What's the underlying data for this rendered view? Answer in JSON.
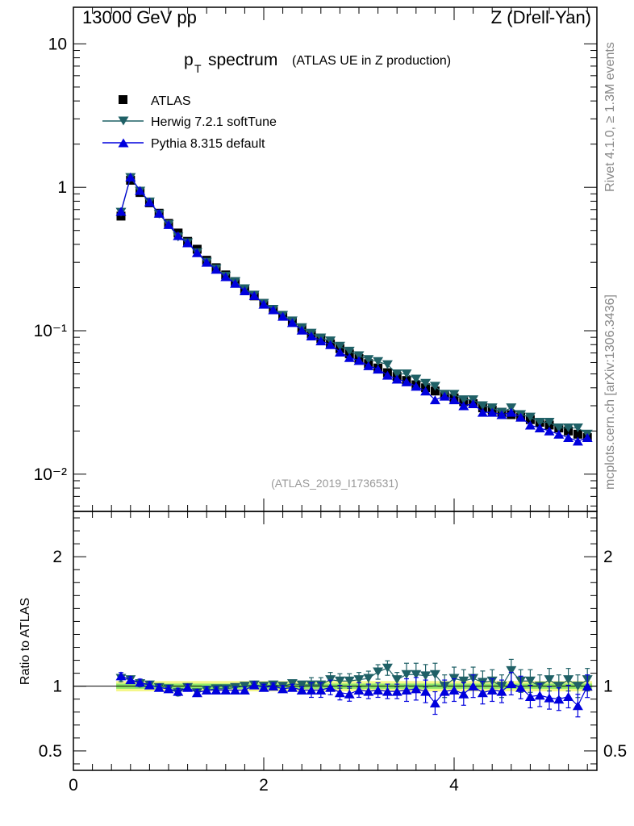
{
  "header": {
    "energy": "13000 GeV pp",
    "process": "Z (Drell-Yan)"
  },
  "side": {
    "rivet": "Rivet 4.1.0, ≥ 1.3M events",
    "mcplots": "mcplots.cern.ch [arXiv:1306.3436]"
  },
  "colors": {
    "atlas": "#000000",
    "herwig": "#1f6066",
    "pythia": "#0000dd",
    "band_outer": "#f4f78a",
    "band_inner": "#8fe86a"
  },
  "chart_data": [
    {
      "type": "scatter",
      "title": "p_T spectrum",
      "title_main": "p",
      "title_sub": "T",
      "title_word": "spectrum",
      "title_note": "(ATLAS UE in Z production)",
      "analysis_label": "(ATLAS_2019_I1736531)",
      "xlabel": "",
      "ylabel": "",
      "yscale": "log",
      "xlim": [
        0,
        5.5
      ],
      "ylim": [
        0.0055,
        18
      ],
      "ytick_labels": [
        "10",
        "1",
        "10⁻¹",
        "10⁻²"
      ],
      "ytick_values": [
        10,
        1,
        0.1,
        0.01
      ],
      "legend": [
        "ATLAS",
        "Herwig 7.2.1 softTune",
        "Pythia 8.315 default"
      ],
      "x": [
        0.5,
        0.6,
        0.7,
        0.8,
        0.9,
        1.0,
        1.1,
        1.2,
        1.3,
        1.4,
        1.5,
        1.6,
        1.7,
        1.8,
        1.9,
        2.0,
        2.1,
        2.2,
        2.3,
        2.4,
        2.5,
        2.6,
        2.7,
        2.8,
        2.9,
        3.0,
        3.1,
        3.2,
        3.3,
        3.4,
        3.5,
        3.6,
        3.7,
        3.8,
        3.9,
        4.0,
        4.1,
        4.2,
        4.3,
        4.4,
        4.5,
        4.6,
        4.7,
        4.8,
        4.9,
        5.0,
        5.1,
        5.2,
        5.3,
        5.4
      ],
      "series": [
        {
          "name": "ATLAS",
          "marker": "square",
          "values": [
            0.63,
            1.12,
            0.92,
            0.78,
            0.66,
            0.56,
            0.48,
            0.42,
            0.37,
            0.31,
            0.275,
            0.245,
            0.22,
            0.195,
            0.175,
            0.155,
            0.14,
            0.128,
            0.115,
            0.104,
            0.095,
            0.088,
            0.081,
            0.075,
            0.069,
            0.064,
            0.059,
            0.055,
            0.051,
            0.048,
            0.045,
            0.042,
            0.04,
            0.038,
            0.036,
            0.034,
            0.032,
            0.031,
            0.029,
            0.028,
            0.027,
            0.026,
            0.025,
            0.024,
            0.023,
            0.022,
            0.021,
            0.02,
            0.019,
            0.018
          ]
        },
        {
          "name": "Herwig 7.2.1 softTune",
          "marker": "triangle-down",
          "values": [
            0.67,
            1.17,
            0.94,
            0.79,
            0.65,
            0.55,
            0.45,
            0.41,
            0.35,
            0.3,
            0.27,
            0.24,
            0.22,
            0.196,
            0.177,
            0.155,
            0.141,
            0.128,
            0.117,
            0.105,
            0.096,
            0.089,
            0.085,
            0.078,
            0.072,
            0.067,
            0.063,
            0.061,
            0.058,
            0.05,
            0.05,
            0.046,
            0.043,
            0.041,
            0.036,
            0.036,
            0.033,
            0.033,
            0.03,
            0.029,
            0.027,
            0.029,
            0.026,
            0.025,
            0.023,
            0.023,
            0.021,
            0.021,
            0.021,
            0.019
          ]
        },
        {
          "name": "Pythia 8.315 default",
          "marker": "triangle-up",
          "values": [
            0.68,
            1.18,
            0.95,
            0.79,
            0.66,
            0.55,
            0.46,
            0.41,
            0.35,
            0.3,
            0.268,
            0.238,
            0.214,
            0.19,
            0.176,
            0.153,
            0.14,
            0.126,
            0.114,
            0.101,
            0.092,
            0.085,
            0.08,
            0.071,
            0.065,
            0.062,
            0.057,
            0.054,
            0.049,
            0.046,
            0.044,
            0.041,
            0.038,
            0.033,
            0.035,
            0.033,
            0.03,
            0.031,
            0.027,
            0.027,
            0.026,
            0.027,
            0.025,
            0.022,
            0.021,
            0.02,
            0.019,
            0.018,
            0.017,
            0.018
          ]
        }
      ]
    },
    {
      "type": "scatter",
      "title": "",
      "xlabel": "",
      "ylabel": "Ratio to ATLAS",
      "xlim": [
        0,
        5.5
      ],
      "ylim": [
        0.35,
        2.35
      ],
      "xtick_values": [
        0,
        2,
        4
      ],
      "xtick_labels": [
        "0",
        "2",
        "4"
      ],
      "ytick_values": [
        0.5,
        1,
        2
      ],
      "ytick_labels": [
        "0.5",
        "1",
        "2"
      ],
      "x": [
        0.5,
        0.6,
        0.7,
        0.8,
        0.9,
        1.0,
        1.1,
        1.2,
        1.3,
        1.4,
        1.5,
        1.6,
        1.7,
        1.8,
        1.9,
        2.0,
        2.1,
        2.2,
        2.3,
        2.4,
        2.5,
        2.6,
        2.7,
        2.8,
        2.9,
        3.0,
        3.1,
        3.2,
        3.3,
        3.4,
        3.5,
        3.6,
        3.7,
        3.8,
        3.9,
        4.0,
        4.1,
        4.2,
        4.3,
        4.4,
        4.5,
        4.6,
        4.7,
        4.8,
        4.9,
        5.0,
        5.1,
        5.2,
        5.3,
        5.4
      ],
      "band_inner": 0.02,
      "band_outer": 0.04,
      "series": [
        {
          "name": "Herwig 7.2.1 softTune",
          "marker": "triangle-down",
          "values": [
            1.06,
            1.05,
            1.02,
            1.01,
            0.99,
            0.98,
            0.95,
            0.99,
            0.95,
            0.97,
            0.98,
            0.98,
            0.99,
            1.0,
            1.01,
            1.0,
            1.01,
            1.0,
            1.02,
            1.01,
            1.01,
            1.01,
            1.05,
            1.04,
            1.04,
            1.05,
            1.06,
            1.11,
            1.14,
            1.05,
            1.09,
            1.09,
            1.08,
            1.09,
            1.0,
            1.06,
            1.04,
            1.06,
            1.03,
            1.04,
            1.0,
            1.12,
            1.04,
            1.04,
            1.0,
            1.05,
            1.0,
            1.05,
            1.0,
            1.05
          ]
        },
        {
          "name": "Pythia 8.315 default",
          "marker": "triangle-up",
          "values": [
            1.08,
            1.05,
            1.03,
            1.01,
            0.99,
            0.98,
            0.96,
            0.99,
            0.95,
            0.97,
            0.97,
            0.97,
            0.97,
            0.97,
            1.01,
            0.99,
            1.0,
            0.98,
            0.99,
            0.97,
            0.97,
            0.97,
            0.99,
            0.95,
            0.94,
            0.97,
            0.96,
            0.97,
            0.96,
            0.96,
            0.97,
            0.98,
            0.96,
            0.87,
            0.96,
            0.97,
            0.94,
            1.0,
            0.95,
            0.97,
            0.96,
            1.02,
            0.99,
            0.92,
            0.93,
            0.91,
            0.9,
            0.92,
            0.85,
            1.0
          ]
        }
      ]
    }
  ]
}
